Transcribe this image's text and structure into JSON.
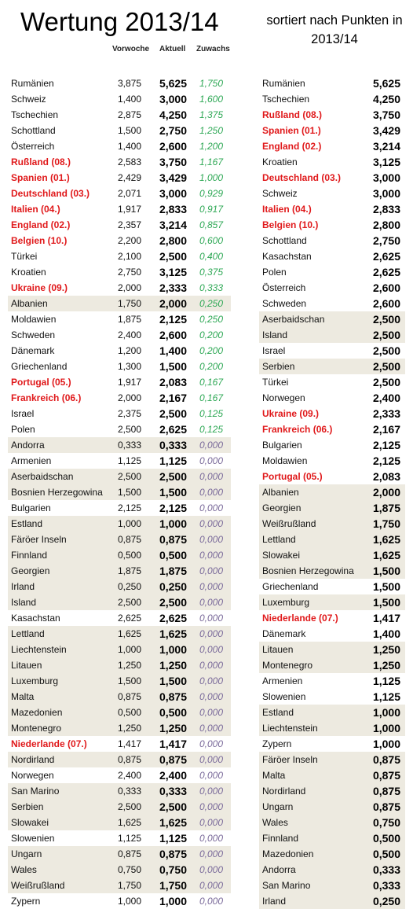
{
  "header": {
    "title": "Wertung 2013/14",
    "subtitle": "sortiert nach Punkten in 2013/14",
    "col_prev": "Vorwoche",
    "col_curr": "Aktuell",
    "col_gain": "Zuwachs"
  },
  "colors": {
    "highlight": "#e0191b",
    "gain_positive": "#2ea855",
    "gain_zero": "#7a6a9a",
    "shade": "#edeae0"
  },
  "left_table": [
    {
      "name": "Rumänien",
      "prev": "3,875",
      "curr": "5,625",
      "gain": "1,750",
      "hl": false,
      "shade": false
    },
    {
      "name": "Schweiz",
      "prev": "1,400",
      "curr": "3,000",
      "gain": "1,600",
      "hl": false,
      "shade": false
    },
    {
      "name": "Tschechien",
      "prev": "2,875",
      "curr": "4,250",
      "gain": "1,375",
      "hl": false,
      "shade": false
    },
    {
      "name": "Schottland",
      "prev": "1,500",
      "curr": "2,750",
      "gain": "1,250",
      "hl": false,
      "shade": false
    },
    {
      "name": "Österreich",
      "prev": "1,400",
      "curr": "2,600",
      "gain": "1,200",
      "hl": false,
      "shade": false
    },
    {
      "name": "Rußland (08.)",
      "prev": "2,583",
      "curr": "3,750",
      "gain": "1,167",
      "hl": true,
      "shade": false
    },
    {
      "name": "Spanien (01.)",
      "prev": "2,429",
      "curr": "3,429",
      "gain": "1,000",
      "hl": true,
      "shade": false
    },
    {
      "name": "Deutschland (03.)",
      "prev": "2,071",
      "curr": "3,000",
      "gain": "0,929",
      "hl": true,
      "shade": false
    },
    {
      "name": "Italien (04.)",
      "prev": "1,917",
      "curr": "2,833",
      "gain": "0,917",
      "hl": true,
      "shade": false
    },
    {
      "name": "England (02.)",
      "prev": "2,357",
      "curr": "3,214",
      "gain": "0,857",
      "hl": true,
      "shade": false
    },
    {
      "name": "Belgien (10.)",
      "prev": "2,200",
      "curr": "2,800",
      "gain": "0,600",
      "hl": true,
      "shade": false
    },
    {
      "name": "Türkei",
      "prev": "2,100",
      "curr": "2,500",
      "gain": "0,400",
      "hl": false,
      "shade": false
    },
    {
      "name": "Kroatien",
      "prev": "2,750",
      "curr": "3,125",
      "gain": "0,375",
      "hl": false,
      "shade": false
    },
    {
      "name": "Ukraine (09.)",
      "prev": "2,000",
      "curr": "2,333",
      "gain": "0,333",
      "hl": true,
      "shade": false
    },
    {
      "name": "Albanien",
      "prev": "1,750",
      "curr": "2,000",
      "gain": "0,250",
      "hl": false,
      "shade": true
    },
    {
      "name": "Moldawien",
      "prev": "1,875",
      "curr": "2,125",
      "gain": "0,250",
      "hl": false,
      "shade": false
    },
    {
      "name": "Schweden",
      "prev": "2,400",
      "curr": "2,600",
      "gain": "0,200",
      "hl": false,
      "shade": false
    },
    {
      "name": "Dänemark",
      "prev": "1,200",
      "curr": "1,400",
      "gain": "0,200",
      "hl": false,
      "shade": false
    },
    {
      "name": "Griechenland",
      "prev": "1,300",
      "curr": "1,500",
      "gain": "0,200",
      "hl": false,
      "shade": false
    },
    {
      "name": "Portugal (05.)",
      "prev": "1,917",
      "curr": "2,083",
      "gain": "0,167",
      "hl": true,
      "shade": false
    },
    {
      "name": "Frankreich (06.)",
      "prev": "2,000",
      "curr": "2,167",
      "gain": "0,167",
      "hl": true,
      "shade": false
    },
    {
      "name": "Israel",
      "prev": "2,375",
      "curr": "2,500",
      "gain": "0,125",
      "hl": false,
      "shade": false
    },
    {
      "name": "Polen",
      "prev": "2,500",
      "curr": "2,625",
      "gain": "0,125",
      "hl": false,
      "shade": false
    },
    {
      "name": "Andorra",
      "prev": "0,333",
      "curr": "0,333",
      "gain": "0,000",
      "hl": false,
      "shade": true
    },
    {
      "name": "Armenien",
      "prev": "1,125",
      "curr": "1,125",
      "gain": "0,000",
      "hl": false,
      "shade": false
    },
    {
      "name": "Aserbaidschan",
      "prev": "2,500",
      "curr": "2,500",
      "gain": "0,000",
      "hl": false,
      "shade": true
    },
    {
      "name": "Bosnien Herzegowina",
      "prev": "1,500",
      "curr": "1,500",
      "gain": "0,000",
      "hl": false,
      "shade": true
    },
    {
      "name": "Bulgarien",
      "prev": "2,125",
      "curr": "2,125",
      "gain": "0,000",
      "hl": false,
      "shade": false
    },
    {
      "name": "Estland",
      "prev": "1,000",
      "curr": "1,000",
      "gain": "0,000",
      "hl": false,
      "shade": true
    },
    {
      "name": "Färöer Inseln",
      "prev": "0,875",
      "curr": "0,875",
      "gain": "0,000",
      "hl": false,
      "shade": true
    },
    {
      "name": "Finnland",
      "prev": "0,500",
      "curr": "0,500",
      "gain": "0,000",
      "hl": false,
      "shade": true
    },
    {
      "name": "Georgien",
      "prev": "1,875",
      "curr": "1,875",
      "gain": "0,000",
      "hl": false,
      "shade": true
    },
    {
      "name": "Irland",
      "prev": "0,250",
      "curr": "0,250",
      "gain": "0,000",
      "hl": false,
      "shade": true
    },
    {
      "name": "Island",
      "prev": "2,500",
      "curr": "2,500",
      "gain": "0,000",
      "hl": false,
      "shade": true
    },
    {
      "name": "Kasachstan",
      "prev": "2,625",
      "curr": "2,625",
      "gain": "0,000",
      "hl": false,
      "shade": false
    },
    {
      "name": "Lettland",
      "prev": "1,625",
      "curr": "1,625",
      "gain": "0,000",
      "hl": false,
      "shade": true
    },
    {
      "name": "Liechtenstein",
      "prev": "1,000",
      "curr": "1,000",
      "gain": "0,000",
      "hl": false,
      "shade": true
    },
    {
      "name": "Litauen",
      "prev": "1,250",
      "curr": "1,250",
      "gain": "0,000",
      "hl": false,
      "shade": true
    },
    {
      "name": "Luxemburg",
      "prev": "1,500",
      "curr": "1,500",
      "gain": "0,000",
      "hl": false,
      "shade": true
    },
    {
      "name": "Malta",
      "prev": "0,875",
      "curr": "0,875",
      "gain": "0,000",
      "hl": false,
      "shade": true
    },
    {
      "name": "Mazedonien",
      "prev": "0,500",
      "curr": "0,500",
      "gain": "0,000",
      "hl": false,
      "shade": true
    },
    {
      "name": "Montenegro",
      "prev": "1,250",
      "curr": "1,250",
      "gain": "0,000",
      "hl": false,
      "shade": true
    },
    {
      "name": "Niederlande (07.)",
      "prev": "1,417",
      "curr": "1,417",
      "gain": "0,000",
      "hl": true,
      "shade": false
    },
    {
      "name": "Nordirland",
      "prev": "0,875",
      "curr": "0,875",
      "gain": "0,000",
      "hl": false,
      "shade": true
    },
    {
      "name": "Norwegen",
      "prev": "2,400",
      "curr": "2,400",
      "gain": "0,000",
      "hl": false,
      "shade": false
    },
    {
      "name": "San Marino",
      "prev": "0,333",
      "curr": "0,333",
      "gain": "0,000",
      "hl": false,
      "shade": true
    },
    {
      "name": "Serbien",
      "prev": "2,500",
      "curr": "2,500",
      "gain": "0,000",
      "hl": false,
      "shade": true
    },
    {
      "name": "Slowakei",
      "prev": "1,625",
      "curr": "1,625",
      "gain": "0,000",
      "hl": false,
      "shade": true
    },
    {
      "name": "Slowenien",
      "prev": "1,125",
      "curr": "1,125",
      "gain": "0,000",
      "hl": false,
      "shade": false
    },
    {
      "name": "Ungarn",
      "prev": "0,875",
      "curr": "0,875",
      "gain": "0,000",
      "hl": false,
      "shade": true
    },
    {
      "name": "Wales",
      "prev": "0,750",
      "curr": "0,750",
      "gain": "0,000",
      "hl": false,
      "shade": true
    },
    {
      "name": "Weißrußland",
      "prev": "1,750",
      "curr": "1,750",
      "gain": "0,000",
      "hl": false,
      "shade": true
    },
    {
      "name": "Zypern",
      "prev": "1,000",
      "curr": "1,000",
      "gain": "0,000",
      "hl": false,
      "shade": false
    }
  ],
  "right_table": [
    {
      "name": "Rumänien",
      "curr": "5,625",
      "hl": false,
      "shade": false
    },
    {
      "name": "Tschechien",
      "curr": "4,250",
      "hl": false,
      "shade": false
    },
    {
      "name": "Rußland (08.)",
      "curr": "3,750",
      "hl": true,
      "shade": false
    },
    {
      "name": "Spanien (01.)",
      "curr": "3,429",
      "hl": true,
      "shade": false
    },
    {
      "name": "England (02.)",
      "curr": "3,214",
      "hl": true,
      "shade": false
    },
    {
      "name": "Kroatien",
      "curr": "3,125",
      "hl": false,
      "shade": false
    },
    {
      "name": "Deutschland (03.)",
      "curr": "3,000",
      "hl": true,
      "shade": false
    },
    {
      "name": "Schweiz",
      "curr": "3,000",
      "hl": false,
      "shade": false
    },
    {
      "name": "Italien (04.)",
      "curr": "2,833",
      "hl": true,
      "shade": false
    },
    {
      "name": "Belgien (10.)",
      "curr": "2,800",
      "hl": true,
      "shade": false
    },
    {
      "name": "Schottland",
      "curr": "2,750",
      "hl": false,
      "shade": false
    },
    {
      "name": "Kasachstan",
      "curr": "2,625",
      "hl": false,
      "shade": false
    },
    {
      "name": "Polen",
      "curr": "2,625",
      "hl": false,
      "shade": false
    },
    {
      "name": "Österreich",
      "curr": "2,600",
      "hl": false,
      "shade": false
    },
    {
      "name": "Schweden",
      "curr": "2,600",
      "hl": false,
      "shade": false
    },
    {
      "name": "Aserbaidschan",
      "curr": "2,500",
      "hl": false,
      "shade": true
    },
    {
      "name": "Island",
      "curr": "2,500",
      "hl": false,
      "shade": true
    },
    {
      "name": "Israel",
      "curr": "2,500",
      "hl": false,
      "shade": false
    },
    {
      "name": "Serbien",
      "curr": "2,500",
      "hl": false,
      "shade": true
    },
    {
      "name": "Türkei",
      "curr": "2,500",
      "hl": false,
      "shade": false
    },
    {
      "name": "Norwegen",
      "curr": "2,400",
      "hl": false,
      "shade": false
    },
    {
      "name": "Ukraine (09.)",
      "curr": "2,333",
      "hl": true,
      "shade": false
    },
    {
      "name": "Frankreich (06.)",
      "curr": "2,167",
      "hl": true,
      "shade": false
    },
    {
      "name": "Bulgarien",
      "curr": "2,125",
      "hl": false,
      "shade": false
    },
    {
      "name": "Moldawien",
      "curr": "2,125",
      "hl": false,
      "shade": false
    },
    {
      "name": "Portugal (05.)",
      "curr": "2,083",
      "hl": true,
      "shade": false
    },
    {
      "name": "Albanien",
      "curr": "2,000",
      "hl": false,
      "shade": true
    },
    {
      "name": "Georgien",
      "curr": "1,875",
      "hl": false,
      "shade": true
    },
    {
      "name": "Weißrußland",
      "curr": "1,750",
      "hl": false,
      "shade": true
    },
    {
      "name": "Lettland",
      "curr": "1,625",
      "hl": false,
      "shade": true
    },
    {
      "name": "Slowakei",
      "curr": "1,625",
      "hl": false,
      "shade": true
    },
    {
      "name": "Bosnien Herzegowina",
      "curr": "1,500",
      "hl": false,
      "shade": true
    },
    {
      "name": "Griechenland",
      "curr": "1,500",
      "hl": false,
      "shade": false
    },
    {
      "name": "Luxemburg",
      "curr": "1,500",
      "hl": false,
      "shade": true
    },
    {
      "name": "Niederlande (07.)",
      "curr": "1,417",
      "hl": true,
      "shade": false
    },
    {
      "name": "Dänemark",
      "curr": "1,400",
      "hl": false,
      "shade": false
    },
    {
      "name": "Litauen",
      "curr": "1,250",
      "hl": false,
      "shade": true
    },
    {
      "name": "Montenegro",
      "curr": "1,250",
      "hl": false,
      "shade": true
    },
    {
      "name": "Armenien",
      "curr": "1,125",
      "hl": false,
      "shade": false
    },
    {
      "name": "Slowenien",
      "curr": "1,125",
      "hl": false,
      "shade": false
    },
    {
      "name": "Estland",
      "curr": "1,000",
      "hl": false,
      "shade": true
    },
    {
      "name": "Liechtenstein",
      "curr": "1,000",
      "hl": false,
      "shade": true
    },
    {
      "name": "Zypern",
      "curr": "1,000",
      "hl": false,
      "shade": false
    },
    {
      "name": "Färöer Inseln",
      "curr": "0,875",
      "hl": false,
      "shade": true
    },
    {
      "name": "Malta",
      "curr": "0,875",
      "hl": false,
      "shade": true
    },
    {
      "name": "Nordirland",
      "curr": "0,875",
      "hl": false,
      "shade": true
    },
    {
      "name": "Ungarn",
      "curr": "0,875",
      "hl": false,
      "shade": true
    },
    {
      "name": "Wales",
      "curr": "0,750",
      "hl": false,
      "shade": true
    },
    {
      "name": "Finnland",
      "curr": "0,500",
      "hl": false,
      "shade": true
    },
    {
      "name": "Mazedonien",
      "curr": "0,500",
      "hl": false,
      "shade": true
    },
    {
      "name": "Andorra",
      "curr": "0,333",
      "hl": false,
      "shade": true
    },
    {
      "name": "San Marino",
      "curr": "0,333",
      "hl": false,
      "shade": true
    },
    {
      "name": "Irland",
      "curr": "0,250",
      "hl": false,
      "shade": true
    }
  ]
}
